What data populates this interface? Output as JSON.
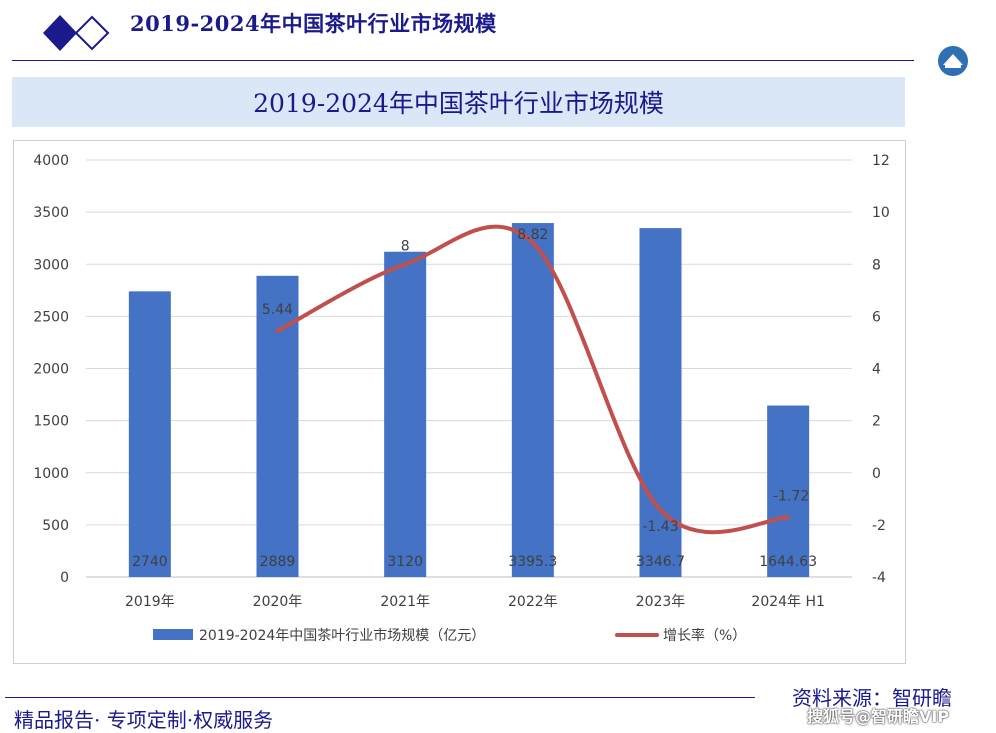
{
  "header": {
    "title": "2019-2024年中国茶叶行业市场规模"
  },
  "chart_data": {
    "type": "bar",
    "title": "2019-2024年中国茶叶行业市场规模",
    "categories": [
      "2019年",
      "2020年",
      "2021年",
      "2022年",
      "2023年",
      "2024年 H1"
    ],
    "series": [
      {
        "name": "2019-2024年中国茶叶行业市场规模（亿元）",
        "type": "bar",
        "axis": "left",
        "color": "#4472c4",
        "values": [
          2740,
          2889,
          3120,
          3395.3,
          3346.7,
          1644.63
        ],
        "labels": [
          "2740",
          "2889",
          "3120",
          "3395.3",
          "3346.7",
          "1644.63"
        ]
      },
      {
        "name": "增长率（%）",
        "type": "line",
        "axis": "right",
        "color": "#c0504d",
        "values": [
          null,
          5.44,
          8,
          8.82,
          -1.43,
          -1.72
        ],
        "labels": [
          "",
          "5.44",
          "8",
          "8.82",
          "-1.43",
          "-1.72"
        ]
      }
    ],
    "y_left": {
      "min": 0,
      "max": 4000,
      "step": 500,
      "ticks": [
        "0",
        "500",
        "1000",
        "1500",
        "2000",
        "2500",
        "3000",
        "3500",
        "4000"
      ]
    },
    "y_right": {
      "min": -4,
      "max": 12,
      "step": 2,
      "ticks": [
        "-4",
        "-2",
        "0",
        "2",
        "4",
        "6",
        "8",
        "10",
        "12"
      ]
    },
    "grid": true,
    "legend": "bottom"
  },
  "footer": {
    "slogan": "精品报告· 专项定制·权威服务",
    "source": "资料来源：智研瞻",
    "watermark": "搜狐号@智研瞻VIP"
  }
}
